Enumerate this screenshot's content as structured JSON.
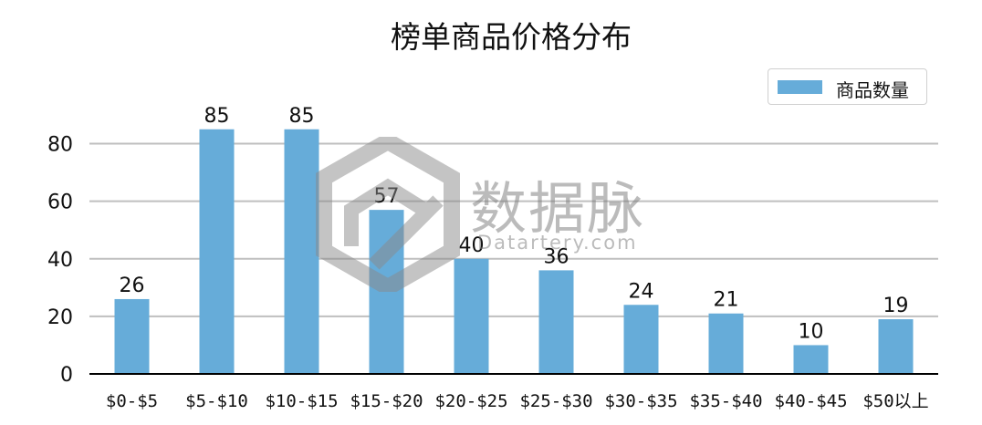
{
  "chart_data": {
    "type": "bar",
    "title": "榜单商品价格分布",
    "categories": [
      "$0-$5",
      "$5-$10",
      "$10-$15",
      "$15-$20",
      "$20-$25",
      "$25-$30",
      "$30-$35",
      "$35-$40",
      "$40-$45",
      "$50以上"
    ],
    "series": [
      {
        "name": "商品数量",
        "values": [
          26,
          85,
          85,
          57,
          40,
          36,
          24,
          21,
          10,
          19
        ],
        "color": "#66acd9"
      }
    ],
    "ylim": [
      0,
      90
    ],
    "yticks": [
      0,
      20,
      40,
      60,
      80
    ],
    "xlabel": "",
    "ylabel": "",
    "grid": true,
    "legend_position": "top-right",
    "data_labels": true
  },
  "watermark": {
    "text": "数据脉",
    "subtext": "Datartery.com",
    "icon": "hexagon-logo-icon"
  }
}
